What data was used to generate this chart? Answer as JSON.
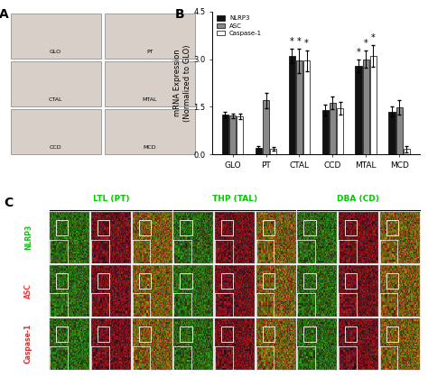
{
  "panel_B": {
    "categories": [
      "GLO",
      "PT",
      "CTAL",
      "CCD",
      "MTAL",
      "MCD"
    ],
    "NLRP3": [
      1.25,
      0.22,
      3.1,
      1.4,
      2.8,
      1.35
    ],
    "ASC": [
      1.22,
      1.7,
      2.95,
      1.62,
      3.0,
      1.48
    ],
    "Caspase1": [
      1.2,
      0.18,
      2.95,
      1.45,
      3.1,
      0.18
    ],
    "NLRP3_err": [
      0.08,
      0.05,
      0.22,
      0.18,
      0.2,
      0.15
    ],
    "ASC_err": [
      0.08,
      0.25,
      0.38,
      0.2,
      0.28,
      0.22
    ],
    "Caspase1_err": [
      0.08,
      0.05,
      0.32,
      0.2,
      0.35,
      0.1
    ],
    "star_NLRP3": [
      false,
      false,
      true,
      false,
      true,
      false
    ],
    "star_ASC": [
      false,
      false,
      true,
      false,
      true,
      false
    ],
    "star_Caspase1": [
      false,
      false,
      true,
      false,
      true,
      false
    ],
    "ylabel": "mRNA Expression\n(Normalized to GLO)",
    "ylim": [
      0.0,
      4.5
    ],
    "yticks": [
      0.0,
      1.5,
      3.0,
      4.5
    ],
    "bar_width": 0.22,
    "colors": [
      "#111111",
      "#888888",
      "#ffffff"
    ],
    "legend_labels": [
      "NLRP3",
      "ASC",
      "Caspase-1"
    ],
    "title": "B"
  },
  "panel_A_label": "A",
  "panel_C_label": "C",
  "panel_C_col_labels": [
    "LTL (PT)",
    "THP (TAL)",
    "DBA (CD)"
  ],
  "panel_C_col_label_color": "#00cc00",
  "panel_C_row_labels": [
    "NLRP3",
    "ASC",
    "Caspase-1"
  ],
  "panel_C_row_label_color_NLRP3": "#00cc00",
  "panel_C_row_label_color_ASC": "#ff3333",
  "panel_C_row_label_color_Caspase1": "#cc3333",
  "figure_bg": "#ffffff"
}
